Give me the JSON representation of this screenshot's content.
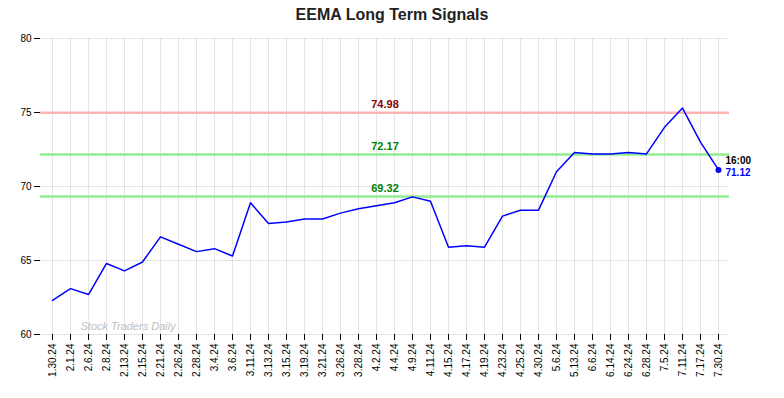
{
  "chart_data": {
    "type": "line",
    "title": "EEMA Long Term Signals",
    "categories": [
      "1.30.24",
      "2.1.24",
      "2.6.24",
      "2.8.24",
      "2.13.24",
      "2.15.24",
      "2.21.24",
      "2.26.24",
      "2.28.24",
      "3.4.24",
      "3.6.24",
      "3.11.24",
      "3.13.24",
      "3.15.24",
      "3.19.24",
      "3.21.24",
      "3.26.24",
      "3.28.24",
      "4.2.24",
      "4.4.24",
      "4.9.24",
      "4.11.24",
      "4.15.24",
      "4.17.24",
      "4.19.24",
      "4.23.24",
      "4.25.24",
      "4.30.24",
      "5.6.24",
      "5.13.24",
      "6.6.24",
      "6.14.24",
      "6.24.24",
      "6.28.24",
      "7.5.24",
      "7.11.24",
      "7.17.24",
      "7.30.24"
    ],
    "values": [
      62.3,
      63.1,
      62.7,
      64.8,
      64.3,
      64.9,
      66.6,
      66.1,
      65.6,
      65.8,
      65.3,
      68.9,
      67.5,
      67.6,
      67.8,
      67.8,
      68.2,
      68.5,
      68.7,
      68.9,
      69.3,
      69.0,
      65.9,
      66.0,
      65.9,
      68.0,
      68.4,
      68.4,
      71.0,
      72.3,
      72.2,
      72.2,
      72.3,
      72.2,
      74.0,
      75.3,
      73.0,
      71.12
    ],
    "color": "blue",
    "marker": "circle",
    "hlines": [
      {
        "value": 74.98,
        "color": "#ffb3b3",
        "label": "74.98",
        "label_color": "darkred"
      },
      {
        "value": 72.17,
        "color": "#90ee90",
        "label": "72.17",
        "label_color": "green"
      },
      {
        "value": 69.32,
        "color": "#90ee90",
        "label": "69.32",
        "label_color": "green"
      }
    ],
    "last_point_label": "16:00",
    "watermark": "Stock Traders Daily",
    "ylim": [
      60,
      80
    ],
    "yticks": [
      60,
      65,
      70,
      75,
      80
    ],
    "grid": true
  }
}
